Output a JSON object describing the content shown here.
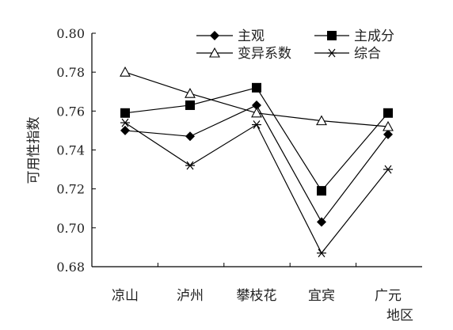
{
  "chart_data": {
    "type": "line",
    "title": "",
    "xlabel": "地区",
    "ylabel": "可用性指数",
    "categories": [
      "凉山",
      "泸州",
      "攀枝花",
      "宜宾",
      "广元"
    ],
    "ylim": [
      0.68,
      0.8
    ],
    "yticks": [
      "0.68",
      "0.70",
      "0.72",
      "0.74",
      "0.76",
      "0.78",
      "0.80"
    ],
    "grid": false,
    "legend_position": "top-right",
    "series": [
      {
        "name": "主观",
        "marker": "diamond-filled",
        "values": [
          0.75,
          0.747,
          0.763,
          0.703,
          0.748
        ]
      },
      {
        "name": "主成分",
        "marker": "square-filled",
        "values": [
          0.759,
          0.763,
          0.772,
          0.719,
          0.759
        ]
      },
      {
        "name": "变异系数",
        "marker": "triangle-open",
        "values": [
          0.78,
          0.769,
          0.759,
          0.755,
          0.752
        ]
      },
      {
        "name": "综合",
        "marker": "asterisk",
        "values": [
          0.754,
          0.732,
          0.753,
          0.687,
          0.73
        ]
      }
    ],
    "color": "#000000"
  }
}
